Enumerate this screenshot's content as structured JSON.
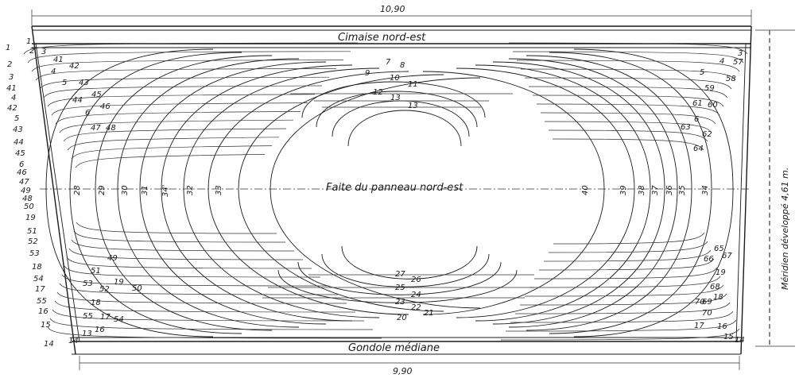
{
  "dimensions": {
    "top_width": "10,90",
    "bottom_width": "9,90",
    "meridian": "Méridien développé 4,61 m."
  },
  "bands": {
    "top": "Cimaise nord-est",
    "bottom": "Gondole médiane",
    "center": "Faite du panneau nord-est"
  },
  "labels": {
    "left_edge": [
      "1",
      "2",
      "3",
      "41",
      "4",
      "42",
      "5",
      "43",
      "44",
      "45",
      "6",
      "46",
      "47",
      "49",
      "48",
      "50",
      "19",
      "51",
      "52",
      "53",
      "18",
      "54",
      "17",
      "55",
      "16",
      "15",
      "14"
    ],
    "center_left": [
      "28",
      "29",
      "30",
      "31",
      "34'",
      "32",
      "33"
    ],
    "center_right": [
      "40",
      "39",
      "38",
      "37",
      "36",
      "35",
      "34"
    ],
    "upper_center": [
      "7",
      "8",
      "9",
      "10",
      "11",
      "12",
      "13",
      "13"
    ],
    "lower_center": [
      "27",
      "26",
      "25",
      "24",
      "23",
      "22",
      "21",
      "20"
    ],
    "upper_left": [
      "1",
      "2",
      "3",
      "41",
      "4",
      "42",
      "5",
      "43",
      "44",
      "45",
      "6",
      "46",
      "47",
      "48"
    ],
    "upper_right": [
      "3",
      "4",
      "57",
      "58",
      "5",
      "59",
      "60",
      "61",
      "6",
      "62",
      "63",
      "64"
    ],
    "lower_left": [
      "49",
      "51",
      "19",
      "50",
      "53",
      "52",
      "18",
      "55",
      "17",
      "54",
      "16",
      "13",
      "14"
    ],
    "lower_right": [
      "65",
      "66",
      "67",
      "19",
      "68",
      "69",
      "18",
      "70",
      "70",
      "17",
      "16",
      "15",
      "14"
    ]
  }
}
